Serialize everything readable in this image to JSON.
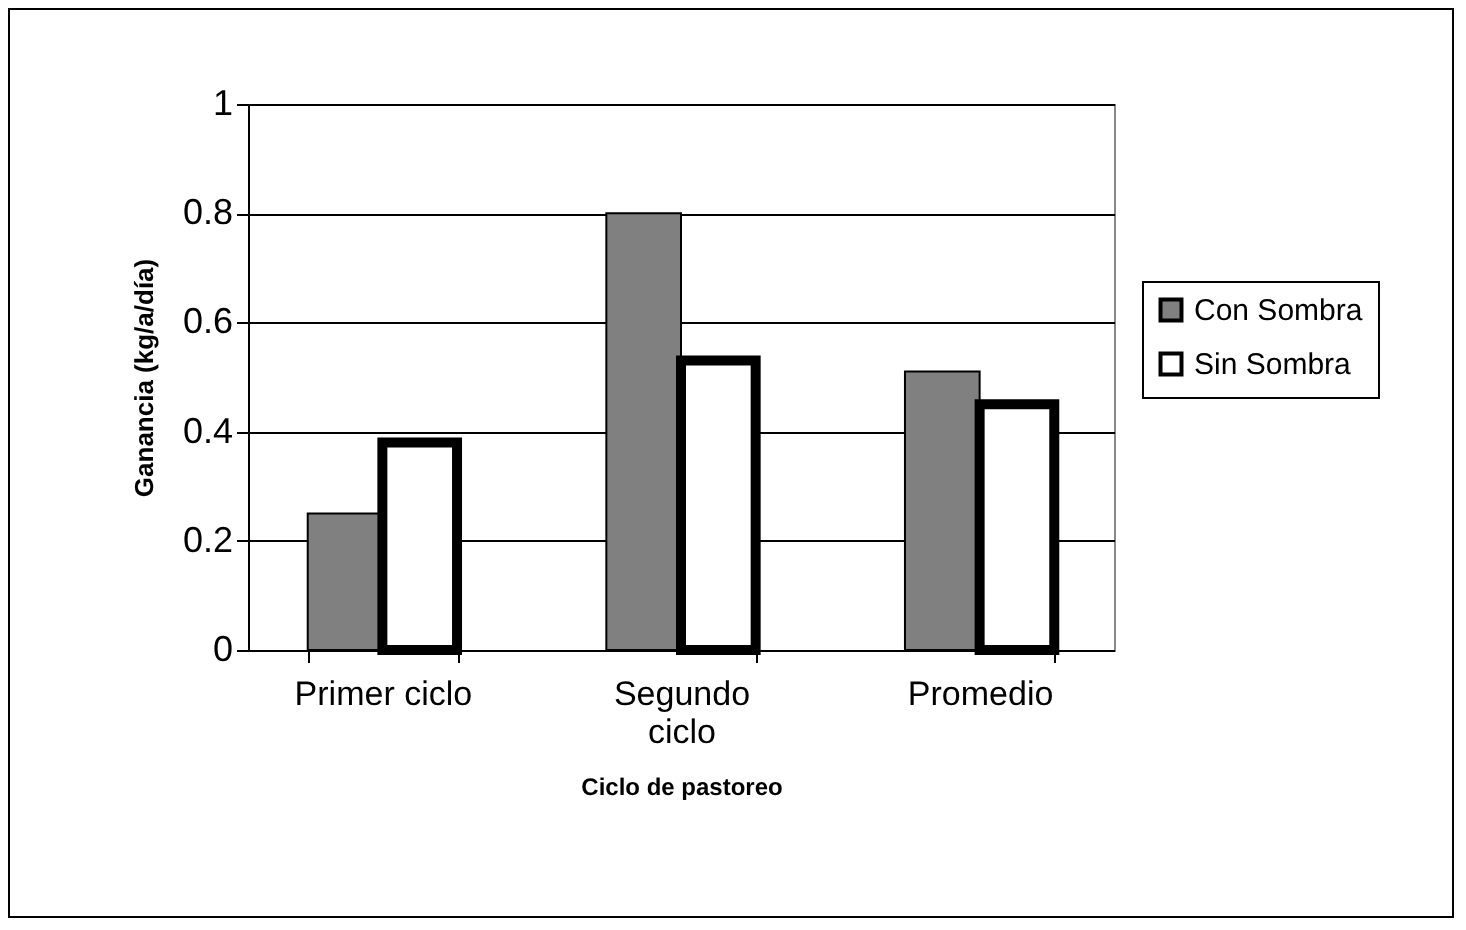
{
  "chart_data": {
    "type": "bar",
    "xlabel": "Ciclo de pastoreo",
    "ylabel": "Ganancia (kg/a/día)",
    "categories": [
      "Primer ciclo",
      "Segundo ciclo",
      "Promedio"
    ],
    "series": [
      {
        "name": "Con Sombra",
        "color": "#808080",
        "values": [
          0.25,
          0.8,
          0.51
        ]
      },
      {
        "name": "Sin Sombra",
        "color": "#ffffff",
        "values": [
          0.38,
          0.53,
          0.45
        ]
      }
    ],
    "ylim": [
      0,
      1
    ],
    "yticks": [
      0,
      0.2,
      0.4,
      0.6,
      0.8,
      1
    ],
    "grid": "y",
    "legend": "right"
  }
}
